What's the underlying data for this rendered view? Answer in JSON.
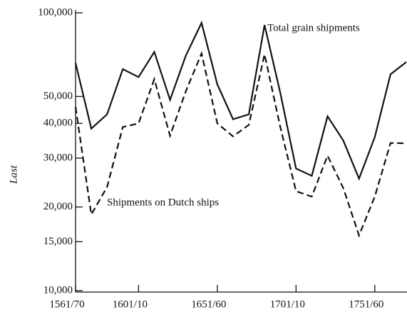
{
  "chart_data": {
    "type": "line",
    "y_label": "Last",
    "annotations": [
      "Total grain shipments",
      "Shipments on Dutch ships"
    ],
    "categories": [
      "1561/70",
      null,
      null,
      null,
      "1601/10",
      null,
      null,
      null,
      null,
      "1651/60",
      null,
      null,
      null,
      null,
      "1701/10",
      null,
      null,
      null,
      null,
      "1751/60",
      null,
      null
    ],
    "series": [
      {
        "name": "Total grain shipments",
        "color": "#111111",
        "dash": "solid",
        "values": [
          66000,
          38300,
          43100,
          62700,
          58700,
          72300,
          48600,
          70100,
          92000,
          55300,
          41400,
          43100,
          90400,
          51500,
          27500,
          25900,
          42400,
          34700,
          25300,
          35700,
          60100,
          66500
        ]
      },
      {
        "name": "Shipments on Dutch ships",
        "color": "#111111",
        "dash": "dashed",
        "values": [
          45800,
          18800,
          23600,
          38800,
          40000,
          57700,
          36100,
          52200,
          71400,
          40000,
          35900,
          39500,
          70900,
          38800,
          22800,
          21800,
          30600,
          23400,
          15800,
          21800,
          34000,
          33900
        ]
      }
    ],
    "log_scale": true,
    "ylim": [
      10000,
      100000
    ],
    "yticks": [
      {
        "value": 10000,
        "label": "10,000"
      },
      {
        "value": 15000,
        "label": "15,000"
      },
      {
        "value": 20000,
        "label": "20,000"
      },
      {
        "value": 30000,
        "label": "30,000"
      },
      {
        "value": 40000,
        "label": "40,000"
      },
      {
        "value": 50000,
        "label": "50,000"
      },
      {
        "value": 100000,
        "label": "100,000"
      }
    ]
  }
}
